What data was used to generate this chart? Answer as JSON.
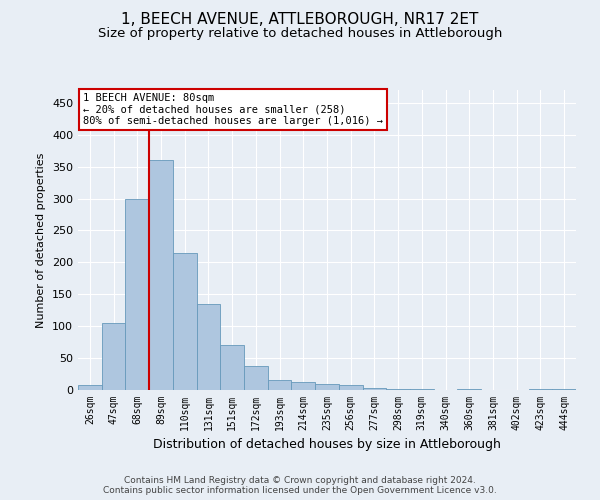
{
  "title": "1, BEECH AVENUE, ATTLEBOROUGH, NR17 2ET",
  "subtitle": "Size of property relative to detached houses in Attleborough",
  "xlabel": "Distribution of detached houses by size in Attleborough",
  "ylabel": "Number of detached properties",
  "footer_line1": "Contains HM Land Registry data © Crown copyright and database right 2024.",
  "footer_line2": "Contains public sector information licensed under the Open Government Licence v3.0.",
  "bar_labels": [
    "26sqm",
    "47sqm",
    "68sqm",
    "89sqm",
    "110sqm",
    "131sqm",
    "151sqm",
    "172sqm",
    "193sqm",
    "214sqm",
    "235sqm",
    "256sqm",
    "277sqm",
    "298sqm",
    "319sqm",
    "340sqm",
    "360sqm",
    "381sqm",
    "402sqm",
    "423sqm",
    "444sqm"
  ],
  "bar_values": [
    8,
    105,
    300,
    360,
    215,
    135,
    70,
    38,
    15,
    12,
    10,
    8,
    3,
    2,
    2,
    0,
    2,
    0,
    0,
    2,
    2
  ],
  "bar_color": "#aec6df",
  "bar_edgecolor": "#6699bb",
  "ylim": [
    0,
    470
  ],
  "yticks": [
    0,
    50,
    100,
    150,
    200,
    250,
    300,
    350,
    400,
    450
  ],
  "vline_x_index": 3,
  "vline_color": "#cc0000",
  "property_label": "1 BEECH AVENUE: 80sqm",
  "annotation_line1": "← 20% of detached houses are smaller (258)",
  "annotation_line2": "80% of semi-detached houses are larger (1,016) →",
  "background_color": "#e8eef5",
  "grid_color": "#ffffff",
  "title_fontsize": 11,
  "subtitle_fontsize": 9.5,
  "ylabel_fontsize": 8,
  "xlabel_fontsize": 9,
  "tick_fontsize": 7,
  "annotation_fontsize": 7.5,
  "footer_fontsize": 6.5
}
